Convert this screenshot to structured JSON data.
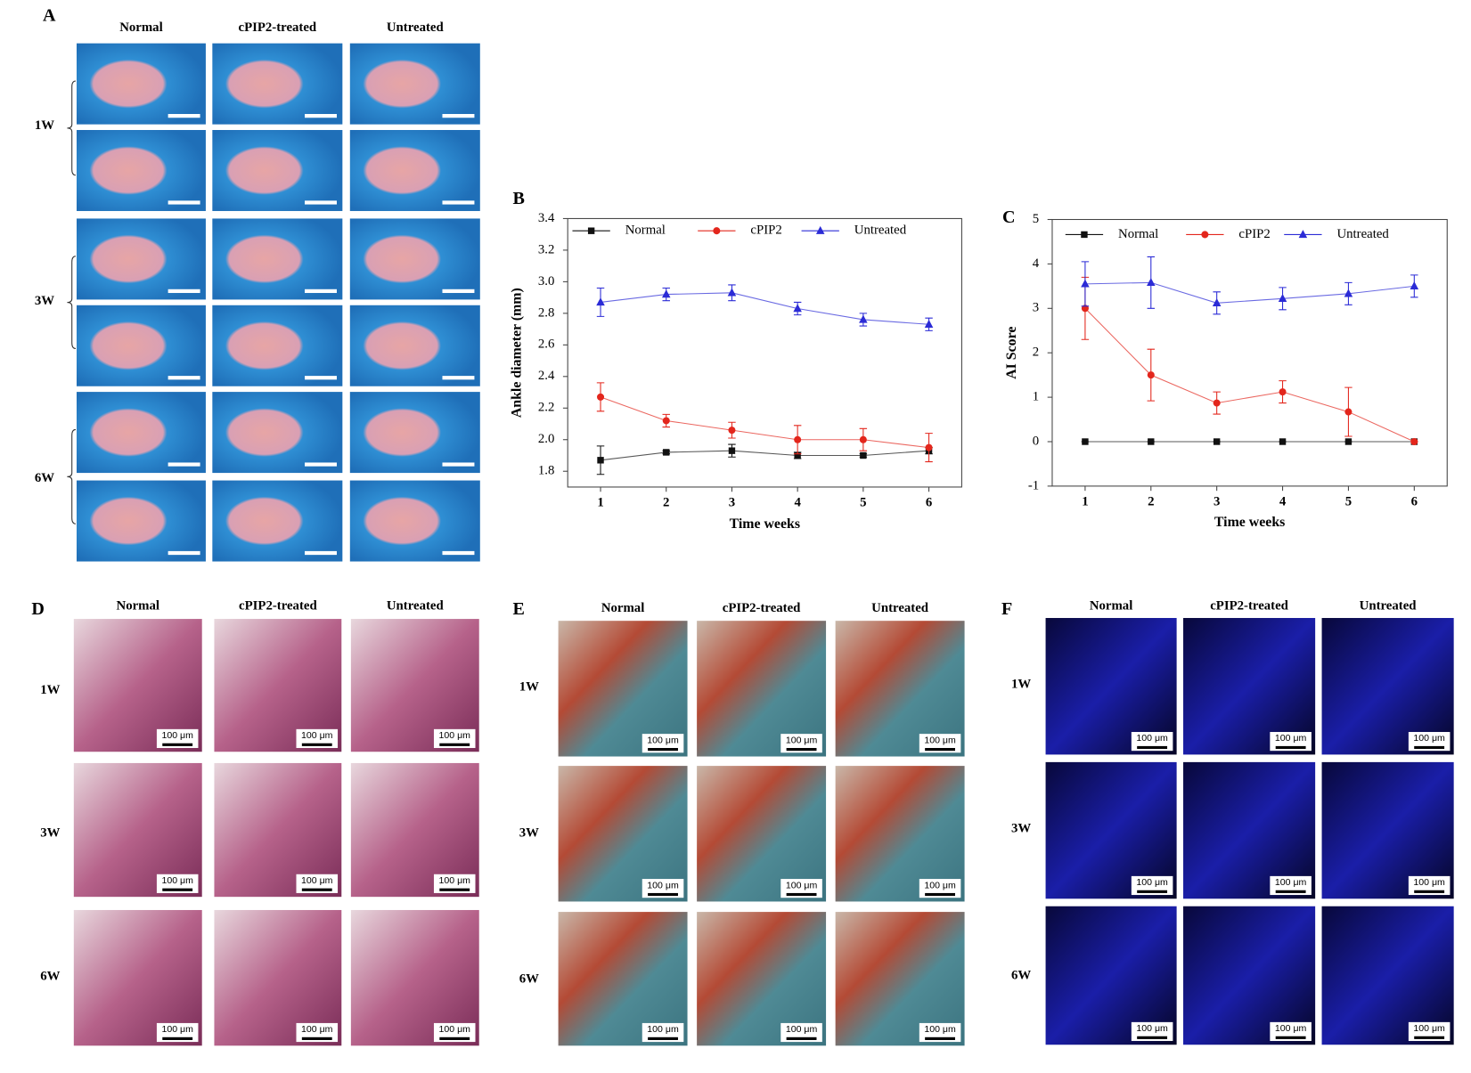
{
  "panels": {
    "A": {
      "label": "A",
      "columns": [
        "Normal",
        "cPIP2-treated",
        "Untreated"
      ],
      "rows": [
        "1W",
        "3W",
        "6W"
      ]
    },
    "D": {
      "label": "D",
      "columns": [
        "Normal",
        "cPIP2-treated",
        "Untreated"
      ],
      "rows": [
        "1W",
        "3W",
        "6W"
      ],
      "scale_label": "100 μm"
    },
    "E": {
      "label": "E",
      "columns": [
        "Normal",
        "cPIP2-treated",
        "Untreated"
      ],
      "rows": [
        "1W",
        "3W",
        "6W"
      ],
      "scale_label": "100 μm"
    },
    "F": {
      "label": "F",
      "columns": [
        "Normal",
        "cPIP2-treated",
        "Untreated"
      ],
      "rows": [
        "1W",
        "3W",
        "6W"
      ],
      "scale_label": "100 μm"
    }
  },
  "chart_data": [
    {
      "type": "line",
      "panel_label": "B",
      "xlabel": "Time weeks",
      "ylabel": "Ankle diameter (mm)",
      "x": [
        1,
        2,
        3,
        4,
        5,
        6
      ],
      "xlim": [
        0.5,
        6.5
      ],
      "xticks": [
        1,
        2,
        3,
        4,
        5,
        6
      ],
      "ylim": [
        1.7,
        3.4
      ],
      "yticks": [
        1.8,
        {
          "value": 2.0,
          "label": "2.0"
        },
        2.2,
        2.4,
        2.6,
        2.8,
        {
          "value": 3.0,
          "label": "3.0"
        },
        3.2,
        3.4
      ],
      "legend": "top",
      "grid": false,
      "series": [
        {
          "name": "Normal",
          "color": "#111111",
          "marker": "square",
          "values": [
            1.87,
            1.92,
            1.93,
            1.9,
            1.9,
            1.93
          ],
          "errors": [
            0.09,
            0.01,
            0.04,
            0.02,
            0.01,
            0.02
          ]
        },
        {
          "name": "cPIP2",
          "color": "#e3261c",
          "marker": "circle",
          "values": [
            2.27,
            2.12,
            2.06,
            2.0,
            2.0,
            1.95
          ],
          "errors": [
            0.09,
            0.04,
            0.05,
            0.09,
            0.07,
            0.09
          ]
        },
        {
          "name": "Untreated",
          "color": "#2b2bd6",
          "marker": "triangle",
          "values": [
            2.87,
            2.92,
            2.93,
            2.83,
            2.76,
            2.73
          ],
          "errors": [
            0.09,
            0.04,
            0.05,
            0.04,
            0.04,
            0.04
          ]
        }
      ]
    },
    {
      "type": "line",
      "panel_label": "C",
      "xlabel": "Time weeks",
      "ylabel": "AI Score",
      "x": [
        1,
        2,
        3,
        4,
        5,
        6
      ],
      "xlim": [
        0.5,
        6.5
      ],
      "xticks": [
        1,
        2,
        3,
        4,
        5,
        6
      ],
      "ylim": [
        -1,
        5
      ],
      "yticks": [
        -1,
        0,
        1,
        2,
        3,
        4,
        5
      ],
      "legend": "top",
      "grid": false,
      "series": [
        {
          "name": "Normal",
          "color": "#111111",
          "marker": "square",
          "values": [
            0,
            0,
            0,
            0,
            0,
            0
          ],
          "errors": [
            0,
            0,
            0,
            0,
            0,
            0
          ]
        },
        {
          "name": "cPIP2",
          "color": "#e3261c",
          "marker": "circle",
          "values": [
            3.0,
            1.5,
            0.87,
            1.12,
            0.67,
            0
          ],
          "errors": [
            0.7,
            0.58,
            0.25,
            0.25,
            0.55,
            0
          ]
        },
        {
          "name": "Untreated",
          "color": "#2b2bd6",
          "marker": "triangle",
          "values": [
            3.55,
            3.58,
            3.12,
            3.22,
            3.33,
            3.5
          ],
          "errors": [
            0.5,
            0.58,
            0.25,
            0.25,
            0.25,
            0.25
          ]
        }
      ]
    }
  ]
}
